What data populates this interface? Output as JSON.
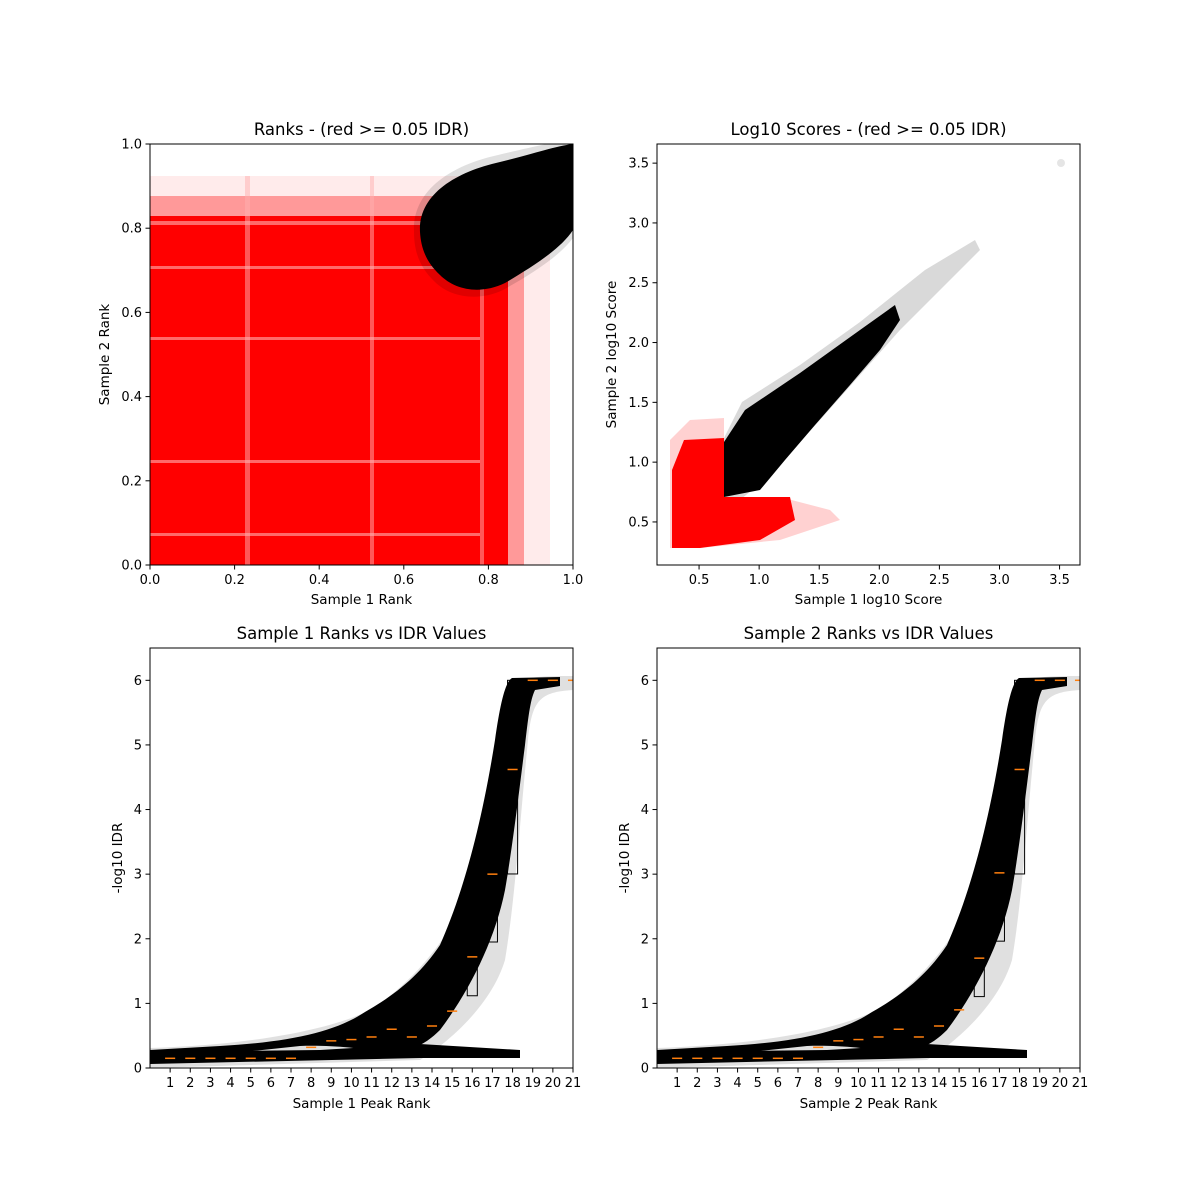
{
  "chart_data": [
    {
      "type": "scatter",
      "title": "Ranks - (red >= 0.05 IDR)",
      "xlabel": "Sample 1 Rank",
      "ylabel": "Sample 2 Rank",
      "xlim": [
        0,
        1
      ],
      "ylim": [
        0,
        1
      ],
      "xticks": [
        "0.0",
        "0.2",
        "0.4",
        "0.6",
        "0.8",
        "1.0"
      ],
      "yticks": [
        "0.0",
        "0.2",
        "0.4",
        "0.6",
        "0.8",
        "1.0"
      ],
      "grid": false,
      "series": [
        {
          "color": "#ff0000",
          "region": "rank points with IDR >= 0.05",
          "x_extent": [
            0,
            0.9
          ],
          "y_extent": [
            0,
            0.88
          ]
        },
        {
          "color": "#000000",
          "region": "rank points with IDR < 0.05",
          "x_extent": [
            0.64,
            1.0
          ],
          "y_extent": [
            0.65,
            1.0
          ]
        }
      ]
    },
    {
      "type": "scatter",
      "title": "Log10 Scores - (red >= 0.05 IDR)",
      "xlabel": "Sample 1 log10 Score",
      "ylabel": "Sample 2 log10 Score",
      "xlim": [
        0.15,
        3.67
      ],
      "ylim": [
        0.14,
        3.66
      ],
      "xticks": [
        "0.5",
        "1.0",
        "1.5",
        "2.0",
        "2.5",
        "3.0",
        "3.5"
      ],
      "yticks": [
        "0.5",
        "1.0",
        "1.5",
        "2.0",
        "2.5",
        "3.0",
        "3.5"
      ],
      "grid": false,
      "series": [
        {
          "color": "#ff0000",
          "region": "low-score points with IDR >= 0.05",
          "x_extent": [
            0.3,
            1.7
          ],
          "y_extent": [
            0.3,
            1.3
          ]
        },
        {
          "color": "#000000",
          "region": "high-score points with IDR < 0.05",
          "x_extent": [
            0.3,
            3.5
          ],
          "y_extent": [
            0.3,
            3.52
          ]
        }
      ]
    },
    {
      "type": "scatter",
      "title": "Sample 1 Ranks vs IDR Values",
      "xlabel": "Sample 1 Peak Rank",
      "ylabel": "-log10 IDR",
      "xlim": [
        0,
        21
      ],
      "ylim": [
        0,
        6.5
      ],
      "xticks": [
        "1",
        "2",
        "3",
        "4",
        "5",
        "6",
        "7",
        "8",
        "9",
        "10",
        "11",
        "12",
        "13",
        "14",
        "15",
        "16",
        "17",
        "18",
        "19",
        "20",
        "21"
      ],
      "yticks": [
        "0",
        "1",
        "2",
        "3",
        "4",
        "5",
        "6"
      ],
      "grid": false,
      "boxplot_medians": [
        0.15,
        0.15,
        0.15,
        0.15,
        0.15,
        0.15,
        0.15,
        0.32,
        0.42,
        0.44,
        0.48,
        0.6,
        0.48,
        0.65,
        0.88,
        1.72,
        3.0,
        4.62,
        6.0,
        6.0,
        6.0
      ]
    },
    {
      "type": "scatter",
      "title": "Sample 2 Ranks vs IDR Values",
      "xlabel": "Sample 2 Peak Rank",
      "ylabel": "-log10 IDR",
      "xlim": [
        0,
        21
      ],
      "ylim": [
        0,
        6.5
      ],
      "xticks": [
        "1",
        "2",
        "3",
        "4",
        "5",
        "6",
        "7",
        "8",
        "9",
        "10",
        "11",
        "12",
        "13",
        "14",
        "15",
        "16",
        "17",
        "18",
        "19",
        "20",
        "21"
      ],
      "yticks": [
        "0",
        "1",
        "2",
        "3",
        "4",
        "5",
        "6"
      ],
      "grid": false,
      "boxplot_medians": [
        0.15,
        0.15,
        0.15,
        0.15,
        0.15,
        0.15,
        0.15,
        0.32,
        0.42,
        0.44,
        0.48,
        0.6,
        0.48,
        0.65,
        0.9,
        1.7,
        3.02,
        4.62,
        6.0,
        6.0,
        6.0
      ]
    }
  ]
}
